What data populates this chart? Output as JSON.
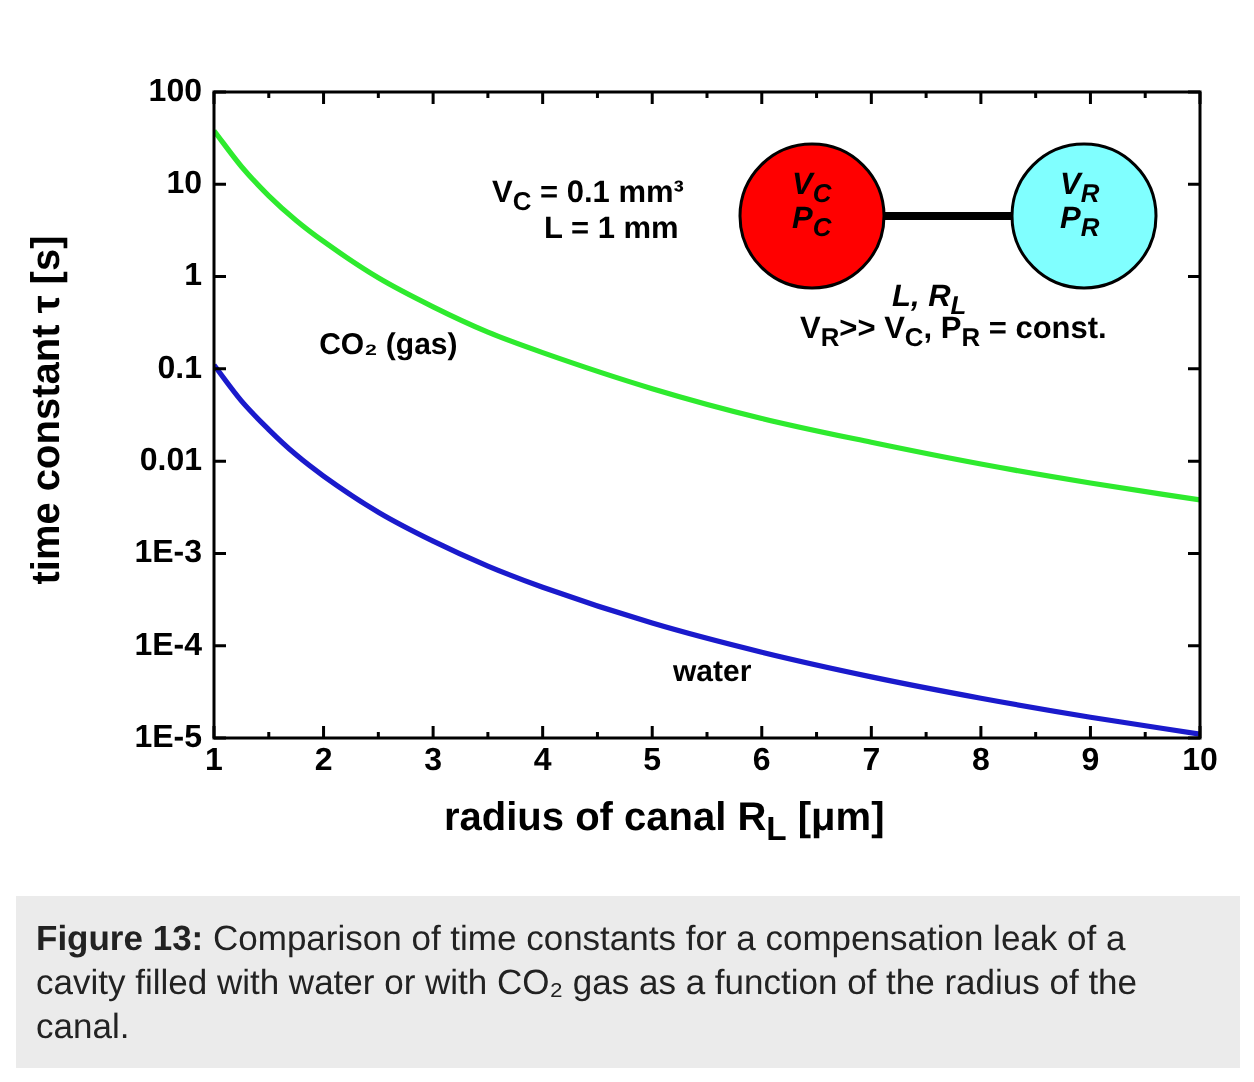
{
  "chart_data": {
    "type": "line",
    "xlabel": "radius of canal R$_{L}$ [μm]",
    "ylabel": "time constant τ [s]",
    "x": [
      1,
      1.25,
      1.5,
      1.75,
      2,
      2.5,
      3,
      3.5,
      4,
      5,
      6,
      7,
      8,
      9,
      10
    ],
    "series": [
      {
        "name": "CO₂ (gas)",
        "color": "#2eea2e",
        "values": [
          38,
          15.6,
          7.5,
          4.05,
          2.4,
          0.97,
          0.47,
          0.25,
          0.15,
          0.061,
          0.029,
          0.016,
          0.0093,
          0.0058,
          0.0038
        ]
      },
      {
        "name": "water",
        "color": "#1a1acc",
        "values": [
          0.11,
          0.045,
          0.022,
          0.0117,
          0.0069,
          0.0028,
          0.00136,
          0.00073,
          0.00043,
          0.000176,
          8.5e-05,
          4.6e-05,
          2.7e-05,
          1.68e-05,
          1.1e-05
        ]
      }
    ],
    "log": "y",
    "grid": false,
    "legend": false,
    "marker": "none",
    "line_style": "solid",
    "xlim": [
      1,
      10
    ],
    "xticks": [
      1,
      2,
      3,
      4,
      5,
      6,
      7,
      8,
      9,
      10
    ],
    "ylim": [
      1e-05,
      100
    ],
    "yticks": [
      {
        "value": 1e-05,
        "label": "1E-5"
      },
      {
        "value": 0.0001,
        "label": "1E-4"
      },
      {
        "value": 0.001,
        "label": "1E-3"
      },
      {
        "value": 0.01,
        "label": "0.01"
      },
      {
        "value": 0.1,
        "label": "0.1"
      },
      {
        "value": 1,
        "label": "1"
      },
      {
        "value": 10,
        "label": "10"
      },
      {
        "value": 100,
        "label": "100"
      }
    ],
    "annotations": [
      "V$_{C}$ = 0.1 mm³",
      "L = 1 mm",
      "V$_{C}$",
      "P$_{C}$",
      "V$_{R}$",
      "P$_{R}$",
      "L, R$_{L}$",
      "V$_{R}$>> V$_{C}$, P$_{R}$ = const.",
      "Figure 13: Comparison of time constants for a compensation leak of a cavity filled with water or with CO₂ gas as a function of the radius of the canal."
    ]
  }
}
